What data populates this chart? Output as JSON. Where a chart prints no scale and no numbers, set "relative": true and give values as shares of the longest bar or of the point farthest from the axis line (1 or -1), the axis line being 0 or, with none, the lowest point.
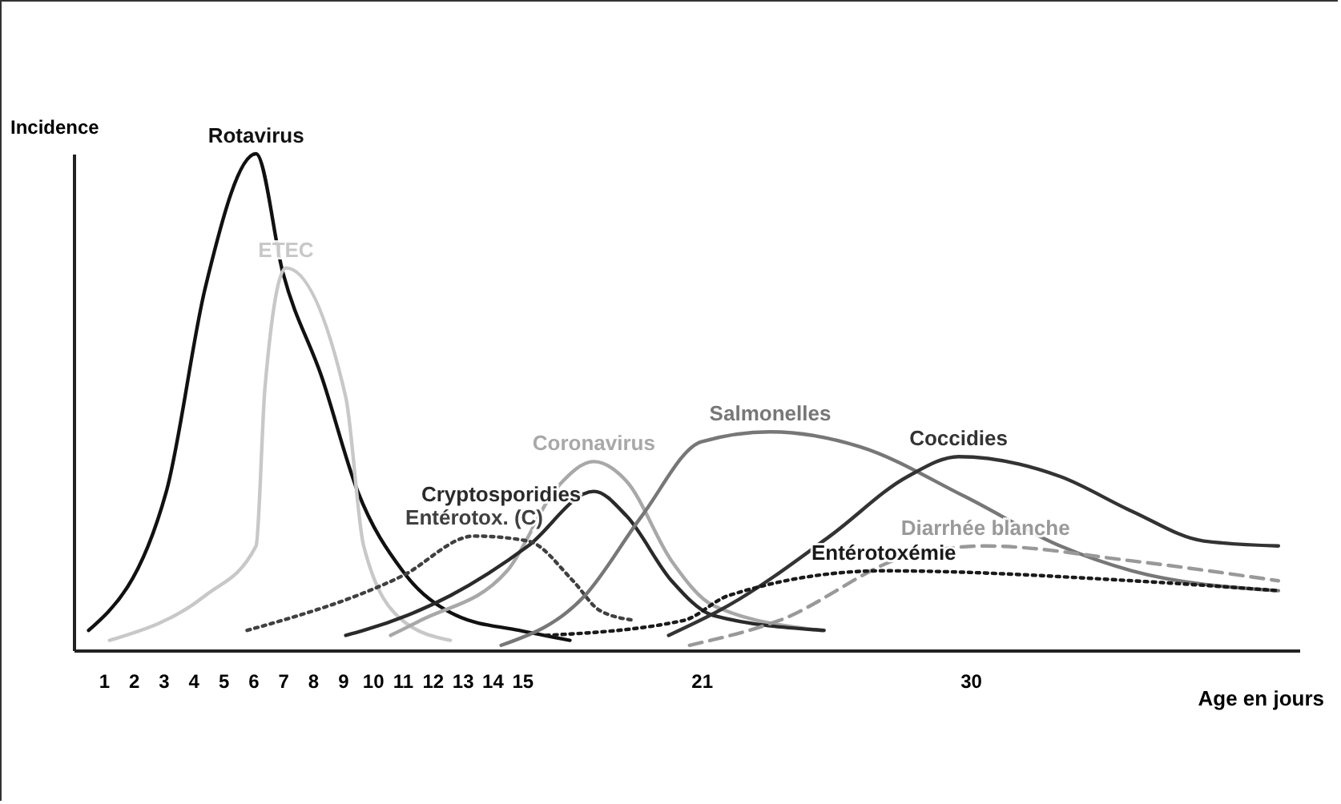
{
  "chart_data": {
    "type": "line",
    "relative": true,
    "xlabel": "Age en jours",
    "ylabel": "Incidence",
    "xlim": [
      0,
      41
    ],
    "xticks": [
      1,
      2,
      3,
      4,
      5,
      6,
      7,
      8,
      9,
      10,
      11,
      12,
      13,
      14,
      15,
      21,
      30
    ],
    "grid": false,
    "legend": false,
    "marker": "none",
    "series": [
      {
        "name": "Rotavirus",
        "color": "#111111",
        "line_style": "solid",
        "x": [
          0.5,
          3.1,
          4.4,
          6.1,
          7,
          8.3,
          9.5,
          11,
          12.8,
          14.9,
          16.6
        ],
        "values": [
          0.04,
          0.32,
          0.73,
          1,
          0.76,
          0.55,
          0.32,
          0.16,
          0.07,
          0.04,
          0.02
        ]
      },
      {
        "name": "ETEC",
        "color": "#c8c8c8",
        "line_style": "solid",
        "x": [
          1.2,
          4.4,
          6.1,
          6.4,
          7.1,
          9.1,
          9.7,
          11,
          12.6
        ],
        "values": [
          0.02,
          0.11,
          0.21,
          0.53,
          0.77,
          0.51,
          0.21,
          0.06,
          0.02
        ]
      },
      {
        "name": "Coronavirus",
        "color": "#a8a8a8",
        "line_style": "solid",
        "x": [
          10.6,
          11.6,
          14.5,
          16.2,
          17.4,
          18.5,
          20,
          21.4,
          25
        ],
        "values": [
          0.03,
          0.06,
          0.16,
          0.33,
          0.38,
          0.34,
          0.18,
          0.09,
          0.04
        ]
      },
      {
        "name": "Cryptosporidies",
        "color": "#2a2a2a",
        "line_style": "solid",
        "x": [
          9.1,
          9.7,
          12.6,
          15.2,
          17.4,
          18.5,
          20,
          21.4,
          25.1
        ],
        "values": [
          0.03,
          0.04,
          0.11,
          0.21,
          0.32,
          0.27,
          0.14,
          0.07,
          0.04
        ]
      },
      {
        "name": "Entérotox. (C)",
        "color": "#404040",
        "line_style": "dotted",
        "x": [
          5.8,
          11,
          13.4,
          15.2,
          16.7,
          17.6,
          18.8
        ],
        "values": [
          0.04,
          0.15,
          0.23,
          0.22,
          0.14,
          0.08,
          0.06
        ]
      },
      {
        "name": "Salmonelles",
        "color": "#777777",
        "line_style": "solid",
        "x": [
          14.3,
          17.1,
          19,
          21,
          23.3,
          26.3,
          29.8,
          33,
          35.4,
          40.3
        ],
        "values": [
          0.01,
          0.11,
          0.27,
          0.42,
          0.44,
          0.41,
          0.31,
          0.21,
          0.16,
          0.12
        ]
      },
      {
        "name": "Coccidies",
        "color": "#333333",
        "line_style": "solid",
        "x": [
          19.9,
          21.9,
          25.3,
          27.9,
          29.6,
          33,
          35.4,
          37.8,
          40.3
        ],
        "values": [
          0.03,
          0.09,
          0.23,
          0.35,
          0.39,
          0.35,
          0.28,
          0.22,
          0.21
        ]
      },
      {
        "name": "Diarrhée blanche",
        "color": "#999999",
        "line_style": "dashed",
        "x": [
          20.6,
          23.6,
          27.9,
          30.5,
          35.4,
          40.3
        ],
        "values": [
          0.01,
          0.06,
          0.19,
          0.21,
          0.18,
          0.14
        ]
      },
      {
        "name": "Entérotoxémie",
        "color": "#1a1a1a",
        "line_style": "dotted",
        "x": [
          15.8,
          20.4,
          21.9,
          27.1,
          35.4,
          40.3
        ],
        "values": [
          0.03,
          0.06,
          0.11,
          0.16,
          0.14,
          0.12
        ]
      }
    ]
  }
}
